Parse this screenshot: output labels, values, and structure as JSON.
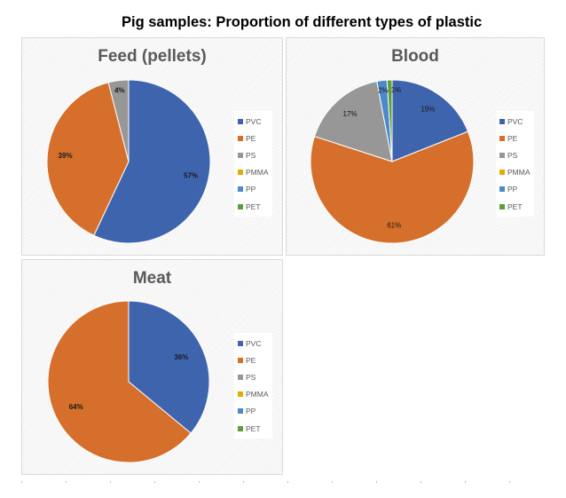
{
  "title": "Pig samples: Proportion of different types of plastic",
  "colors": {
    "PVC": "#3f64ae",
    "PE": "#d56f2b",
    "PS": "#979797",
    "PMMA": "#e3ad00",
    "PP": "#4c89c8",
    "PET": "#5e9d3e"
  },
  "chart_data": [
    {
      "type": "pie",
      "title": "Feed (pellets)",
      "categories": [
        "PVC",
        "PE",
        "PS",
        "PMMA",
        "PP",
        "PET"
      ],
      "values": [
        57,
        39,
        4,
        0,
        0,
        0
      ],
      "labels": [
        "57%",
        "39%",
        "4%",
        "",
        "",
        ""
      ],
      "legend_position": "right"
    },
    {
      "type": "pie",
      "title": "Blood",
      "categories": [
        "PVC",
        "PE",
        "PS",
        "PMMA",
        "PP",
        "PET"
      ],
      "values": [
        19,
        61,
        17,
        0,
        2,
        1
      ],
      "labels": [
        "19%",
        "61%",
        "17%",
        "",
        "2%",
        "1%"
      ],
      "legend_position": "right"
    },
    {
      "type": "pie",
      "title": "Meat",
      "categories": [
        "PVC",
        "PE",
        "PS",
        "PMMA",
        "PP",
        "PET"
      ],
      "values": [
        36,
        64,
        0,
        0,
        0,
        0
      ],
      "labels": [
        "36%",
        "64%",
        "",
        "",
        "",
        ""
      ],
      "legend_position": "right"
    }
  ]
}
